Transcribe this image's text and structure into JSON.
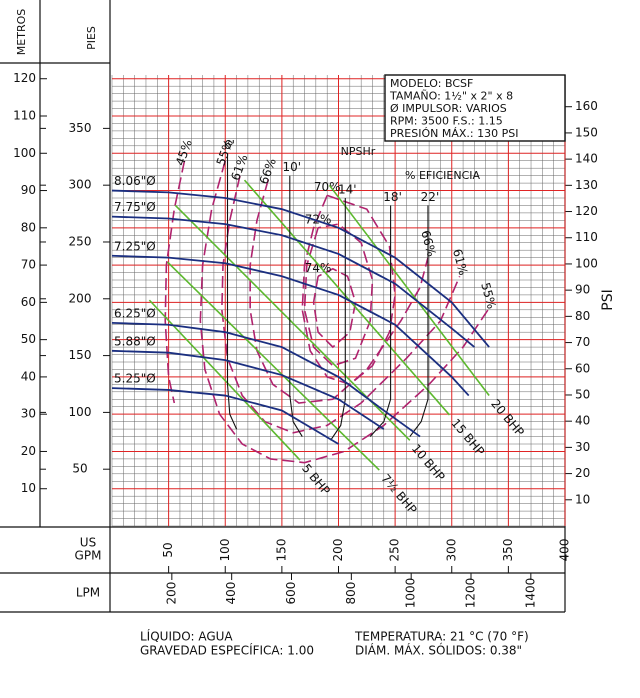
{
  "chart_data": {
    "type": "pump_curve",
    "y_label": "METROS",
    "y_ft_label": "PIES",
    "y2_label": "PSI",
    "x_label": [
      "US",
      "GPM"
    ],
    "x2_label": "LPM",
    "xlim": [
      0,
      400
    ],
    "ylim": [
      0,
      121
    ],
    "xticks": [
      50,
      100,
      150,
      200,
      250,
      300,
      350,
      400
    ],
    "yticks": [
      10,
      20,
      30,
      40,
      50,
      60,
      70,
      80,
      90,
      100,
      110,
      120
    ],
    "yticks_ft": [
      50,
      100,
      150,
      200,
      250,
      300,
      350
    ],
    "y2ticks": [
      10,
      20,
      30,
      40,
      50,
      60,
      70,
      80,
      90,
      100,
      110,
      120,
      130,
      140,
      150,
      160
    ],
    "x2ticks": [
      200,
      400,
      600,
      800,
      1000,
      1200,
      1400
    ],
    "grid": true,
    "minor_grid_step": [
      10,
      2
    ],
    "info_box": [
      "MODELO: BCSF",
      "TAMAÑO: 1½\" x 2\" x 8",
      "Ø IMPULSOR: VARIOS",
      "RPM: 3500     F.S.: 1.15",
      "PRESIÓN MÁX.: 130 PSI"
    ],
    "efficiency_label": "% EFICIENCIA",
    "npsh_label": "NPSHr",
    "impellers": [
      {
        "name": "8.06\"Ø",
        "color": "#1b2f80",
        "x": [
          0,
          50,
          100,
          150,
          200,
          250,
          300,
          333
        ],
        "y": [
          90,
          89.5,
          88,
          85,
          80,
          72,
          60,
          48
        ]
      },
      {
        "name": "7.75\"Ø",
        "color": "#1b2f80",
        "x": [
          0,
          50,
          100,
          150,
          200,
          250,
          300,
          320
        ],
        "y": [
          83,
          82.5,
          81,
          78,
          73,
          65,
          53,
          48
        ]
      },
      {
        "name": "7.25\"Ø",
        "color": "#1b2f80",
        "x": [
          0,
          50,
          100,
          150,
          200,
          250,
          300,
          315
        ],
        "y": [
          72.5,
          72,
          70.5,
          67,
          62,
          54,
          40,
          35
        ]
      },
      {
        "name": "6.25\"Ø",
        "color": "#1b2f80",
        "x": [
          0,
          50,
          100,
          150,
          200,
          240,
          272
        ],
        "y": [
          54.5,
          54,
          52,
          48,
          40,
          31,
          24
        ]
      },
      {
        "name": "5.88\"Ø",
        "color": "#1b2f80",
        "x": [
          0,
          50,
          100,
          150,
          200,
          240
        ],
        "y": [
          47,
          46.5,
          44.5,
          40.5,
          34,
          26
        ]
      },
      {
        "name": "5.25\"Ø",
        "color": "#1b2f80",
        "x": [
          0,
          50,
          100,
          150,
          200
        ],
        "y": [
          37,
          36.5,
          35,
          31,
          22
        ]
      }
    ],
    "bhp": [
      {
        "name": "5 BHP",
        "color": "#5cb82e",
        "x": [
          33,
          166
        ],
        "y": [
          60.6,
          17.7
        ]
      },
      {
        "name": "7½ BHP",
        "color": "#5cb82e",
        "x": [
          49,
          236
        ],
        "y": [
          70.8,
          15
        ]
      },
      {
        "name": "10 BHP",
        "color": "#5cb82e",
        "x": [
          56,
          263
        ],
        "y": [
          86,
          23
        ]
      },
      {
        "name": "15 BHP",
        "color": "#5cb82e",
        "x": [
          117,
          298
        ],
        "y": [
          92.8,
          29.8
        ]
      },
      {
        "name": "20 BHP",
        "color": "#5cb82e",
        "x": [
          192,
          333
        ],
        "y": [
          91.4,
          35
        ]
      }
    ],
    "efficiency": [
      {
        "name": "45%",
        "color": "#b0236e",
        "x": [
          64,
          55,
          48,
          47,
          50,
          55
        ],
        "y": [
          98,
          85,
          70,
          55,
          40,
          33
        ]
      },
      {
        "name": "55%",
        "end_label": "55%",
        "color": "#b0236e",
        "x": [
          100,
          88,
          80,
          78,
          82,
          95,
          115,
          140,
          170,
          205,
          240,
          280,
          310,
          332
        ],
        "y": [
          98,
          85,
          70,
          55,
          42,
          30,
          22,
          18,
          17,
          20,
          27,
          38,
          48,
          58
        ]
      },
      {
        "name": "61%",
        "end_label": "61%",
        "color": "#b0236e",
        "x": [
          113,
          104,
          98,
          97,
          102,
          115,
          135,
          160,
          190,
          220,
          260,
          290,
          307
        ],
        "y": [
          94,
          82,
          70,
          58,
          45,
          35,
          28,
          25,
          27,
          33,
          45,
          55,
          67
        ]
      },
      {
        "name": "66%",
        "end_label": "66%",
        "color": "#b0236e",
        "x": [
          138,
          128,
          122,
          122,
          128,
          142,
          165,
          195,
          225,
          255,
          272,
          279
        ],
        "y": [
          93,
          82,
          70,
          58,
          47,
          38,
          33,
          34,
          42,
          55,
          64,
          72
        ]
      },
      {
        "name": "70%",
        "color": "#b0236e",
        "x": [
          190,
          178,
          170,
          168,
          175,
          190,
          210,
          230,
          245,
          250,
          245,
          225,
          190
        ],
        "y": [
          88.7,
          80,
          70,
          58,
          47,
          40,
          38,
          43,
          52,
          62,
          75,
          85,
          88.7
        ]
      },
      {
        "name": "72%",
        "color": "#b0236e",
        "x": [
          182,
          172,
          170,
          178,
          195,
          215,
          228,
          230,
          220,
          200,
          182
        ],
        "y": [
          80,
          70,
          58,
          48,
          43,
          45,
          55,
          66,
          76,
          81,
          80
        ]
      },
      {
        "name": "74%",
        "color": "#b0236e",
        "x": [
          182,
          178,
          182,
          195,
          210,
          215,
          208,
          195,
          182
        ],
        "y": [
          67,
          60,
          52,
          48,
          52,
          60,
          67,
          69,
          67
        ]
      }
    ],
    "npsh": [
      {
        "name": "6'",
        "color": "#111111",
        "x": [
          102,
          102,
          104,
          110
        ],
        "y": [
          100,
          38,
          30,
          26
        ]
      },
      {
        "name": "10'",
        "color": "#111111",
        "x": [
          157,
          157,
          160,
          168
        ],
        "y": [
          94,
          35,
          28,
          24
        ]
      },
      {
        "name": "14'",
        "color": "#111111",
        "x": [
          206,
          206,
          202,
          193
        ],
        "y": [
          88,
          34,
          27,
          23
        ]
      },
      {
        "name": "18'",
        "color": "#111111",
        "x": [
          246,
          246,
          240,
          228
        ],
        "y": [
          86,
          34,
          28,
          24
        ]
      },
      {
        "name": "22'",
        "color": "#111111",
        "x": [
          279,
          279,
          273,
          263
        ],
        "y": [
          86,
          34,
          28,
          24
        ]
      }
    ],
    "footer_left": [
      "LÍQUIDO: AGUA",
      "GRAVEDAD ESPECÍFICA: 1.00"
    ],
    "footer_right": [
      "TEMPERATURA: 21 °C (70 °F)",
      "DIÁM. MÁX. SÓLIDOS: 0.38\""
    ]
  }
}
